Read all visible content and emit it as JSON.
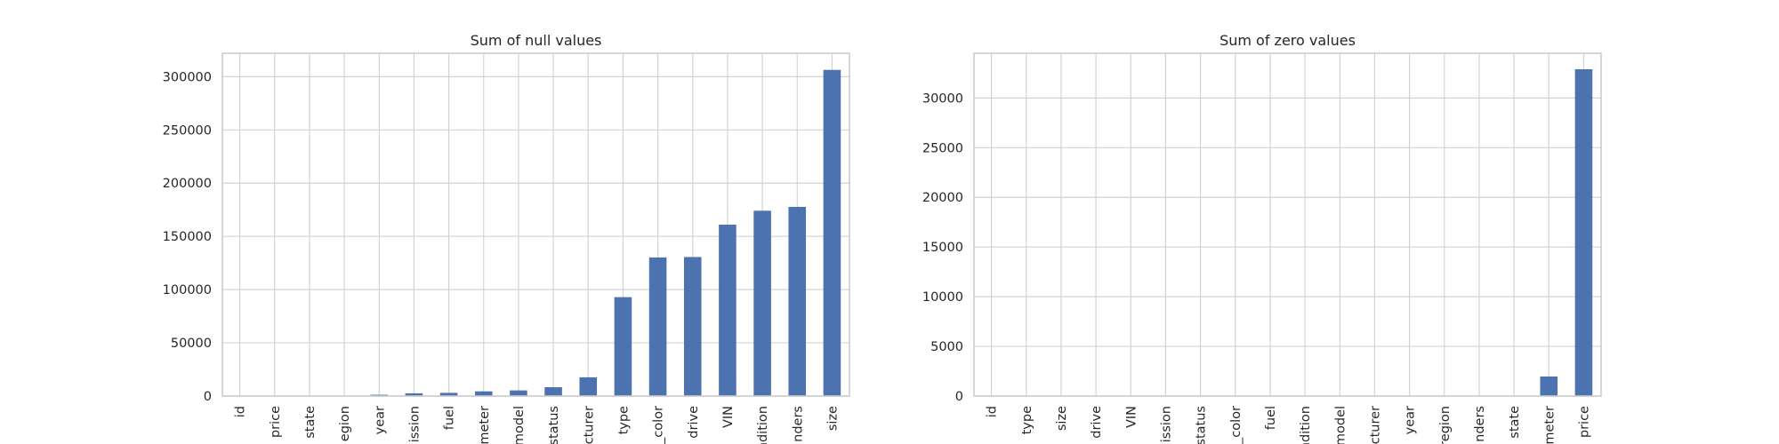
{
  "chart_data": [
    {
      "type": "bar",
      "title": "Sum of null values",
      "xlabel": "",
      "ylabel": "",
      "categories": [
        "id",
        "price",
        "state",
        "region",
        "year",
        "transmission",
        "fuel",
        "odometer",
        "model",
        "title_status",
        "manufacturer",
        "type",
        "paint_color",
        "drive",
        "VIN",
        "condition",
        "cylinders",
        "size"
      ],
      "tick_labels": [
        "id",
        "price",
        "state",
        "egion",
        "year",
        "ission",
        "fuel",
        "meter",
        "model",
        "status",
        "cturer",
        "type",
        "_color",
        "drive",
        "VIN",
        "ndition",
        "nders",
        "size"
      ],
      "values": [
        0,
        0,
        0,
        0,
        1200,
        2600,
        3000,
        4400,
        5300,
        8300,
        17600,
        92900,
        130200,
        130600,
        161000,
        174100,
        177700,
        306400
      ],
      "ylim": [
        0,
        322000
      ],
      "yticks": [
        0,
        50000,
        100000,
        150000,
        200000,
        250000,
        300000
      ],
      "grid": true,
      "color": "#4c72b0"
    },
    {
      "type": "bar",
      "title": "Sum of zero values",
      "xlabel": "",
      "ylabel": "",
      "categories": [
        "id",
        "type",
        "size",
        "drive",
        "VIN",
        "transmission",
        "title_status",
        "paint_color",
        "fuel",
        "condition",
        "model",
        "manufacturer",
        "year",
        "region",
        "cylinders",
        "state",
        "odometer",
        "price"
      ],
      "tick_labels": [
        "id",
        "type",
        "size",
        "drive",
        "VIN",
        "ission",
        "status",
        "_color",
        "fuel",
        "ndition",
        "model",
        "cturer",
        "year",
        "region",
        "nders",
        "state",
        "meter",
        "price"
      ],
      "values": [
        0,
        0,
        0,
        0,
        0,
        0,
        0,
        0,
        0,
        0,
        0,
        0,
        0,
        0,
        0,
        0,
        1965,
        32895
      ],
      "ylim": [
        0,
        34500
      ],
      "yticks": [
        0,
        5000,
        10000,
        15000,
        20000,
        25000,
        30000
      ],
      "grid": true,
      "color": "#4c72b0"
    }
  ]
}
